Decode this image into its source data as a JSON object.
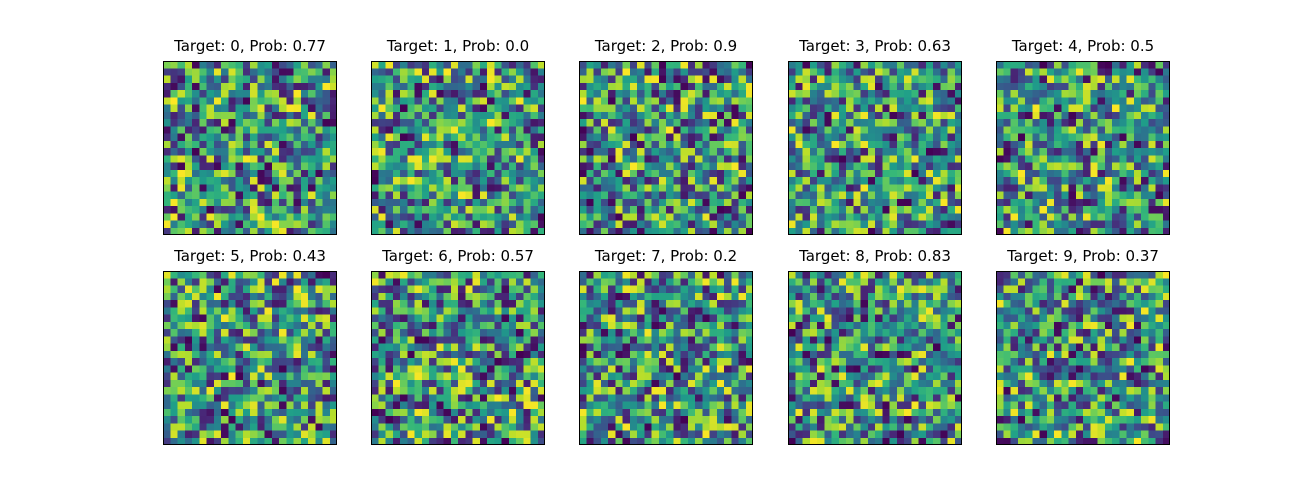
{
  "figure": {
    "background": "#ffffff",
    "colormap": "viridis"
  },
  "chart_data": [
    {
      "type": "heatmap",
      "title": "Target: 0, Prob: 0.77",
      "target": 0,
      "prob": 0.77,
      "grid_size": [
        24,
        24
      ],
      "colormap": "viridis",
      "ticks": "none"
    },
    {
      "type": "heatmap",
      "title": "Target: 1, Prob: 0.0",
      "target": 1,
      "prob": 0.0,
      "grid_size": [
        24,
        24
      ],
      "colormap": "viridis",
      "ticks": "none"
    },
    {
      "type": "heatmap",
      "title": "Target: 2, Prob: 0.9",
      "target": 2,
      "prob": 0.9,
      "grid_size": [
        24,
        24
      ],
      "colormap": "viridis",
      "ticks": "none"
    },
    {
      "type": "heatmap",
      "title": "Target: 3, Prob: 0.63",
      "target": 3,
      "prob": 0.63,
      "grid_size": [
        24,
        24
      ],
      "colormap": "viridis",
      "ticks": "none"
    },
    {
      "type": "heatmap",
      "title": "Target: 4, Prob: 0.5",
      "target": 4,
      "prob": 0.5,
      "grid_size": [
        24,
        24
      ],
      "colormap": "viridis",
      "ticks": "none"
    },
    {
      "type": "heatmap",
      "title": "Target: 5, Prob: 0.43",
      "target": 5,
      "prob": 0.43,
      "grid_size": [
        24,
        24
      ],
      "colormap": "viridis",
      "ticks": "none"
    },
    {
      "type": "heatmap",
      "title": "Target: 6, Prob: 0.57",
      "target": 6,
      "prob": 0.57,
      "grid_size": [
        24,
        24
      ],
      "colormap": "viridis",
      "ticks": "none"
    },
    {
      "type": "heatmap",
      "title": "Target: 7, Prob: 0.2",
      "target": 7,
      "prob": 0.2,
      "grid_size": [
        24,
        24
      ],
      "colormap": "viridis",
      "ticks": "none"
    },
    {
      "type": "heatmap",
      "title": "Target: 8, Prob: 0.83",
      "target": 8,
      "prob": 0.83,
      "grid_size": [
        24,
        24
      ],
      "colormap": "viridis",
      "ticks": "none"
    },
    {
      "type": "heatmap",
      "title": "Target: 9, Prob: 0.37",
      "target": 9,
      "prob": 0.37,
      "grid_size": [
        24,
        24
      ],
      "colormap": "viridis",
      "ticks": "none"
    }
  ]
}
